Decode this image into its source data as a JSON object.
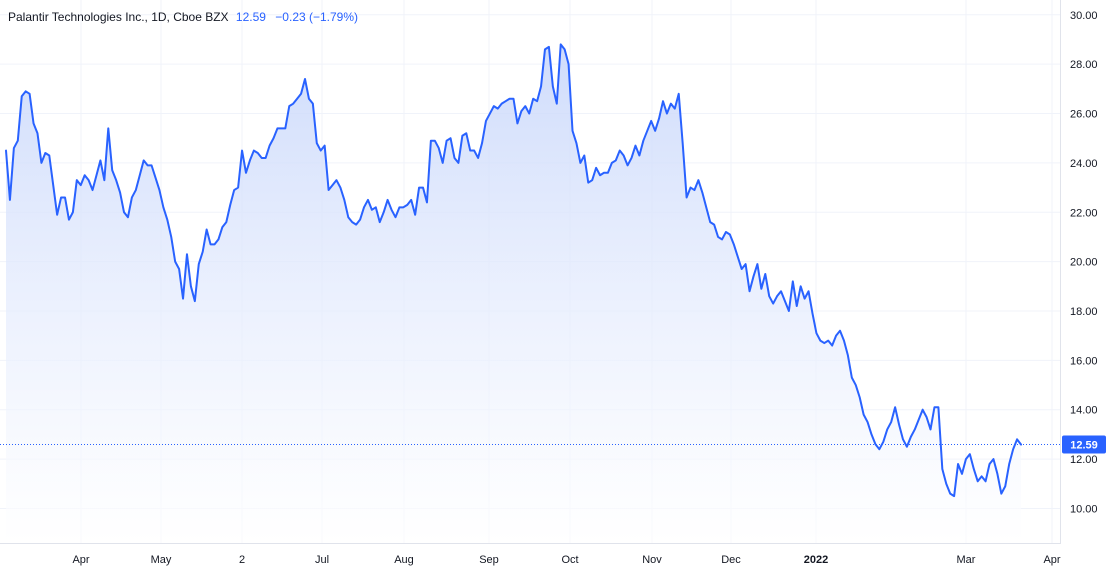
{
  "legend": {
    "symbol": "Palantir Technologies Inc., 1D, Cboe BZX",
    "last": "12.59",
    "change": "−0.23 (−1.79%)"
  },
  "colors": {
    "line": "#2962ff",
    "fill_top": "#c7d6fb",
    "fill_bottom": "#ffffff",
    "grid": "#f0f3fa",
    "axis_text": "#131722",
    "price_label_bg": "#2962ff",
    "price_label_text": "#ffffff"
  },
  "chart_data": {
    "type": "area",
    "title": "Palantir Technologies Inc., 1D, Cboe BZX",
    "xlabel": "",
    "ylabel": "",
    "ylim": [
      8.6,
      30.6
    ],
    "y_ticks": [
      "10.00",
      "12.00",
      "14.00",
      "16.00",
      "18.00",
      "20.00",
      "22.00",
      "24.00",
      "26.00",
      "28.00",
      "30.00"
    ],
    "x_ticks": [
      "Apr",
      "May",
      "2",
      "Jul",
      "Aug",
      "Sep",
      "Oct",
      "Nov",
      "Dec",
      "2022",
      "Mar",
      "Apr"
    ],
    "x_tick_bold": [
      false,
      false,
      false,
      false,
      false,
      false,
      false,
      false,
      false,
      true,
      false,
      false
    ],
    "last_price_label": "12.59",
    "last_price": 12.59,
    "grid": true,
    "series": [
      {
        "values": [
          24.5,
          22.5,
          24.6,
          24.9,
          26.7,
          26.9,
          26.8,
          25.6,
          25.2,
          24.0,
          24.4,
          24.3,
          23.1,
          21.9,
          22.6,
          22.6,
          21.7,
          22.0,
          23.3,
          23.1,
          23.5,
          23.3,
          22.9,
          23.5,
          24.1,
          23.3,
          25.4,
          23.7,
          23.3,
          22.8,
          22.0,
          21.8,
          22.6,
          22.9,
          23.5,
          24.1,
          23.9,
          23.9,
          23.4,
          22.9,
          22.2,
          21.7,
          21.0,
          20.0,
          19.7,
          18.5,
          20.3,
          19.0,
          18.4,
          19.9,
          20.4,
          21.3,
          20.7,
          20.7,
          20.9,
          21.4,
          21.6,
          22.3,
          22.9,
          23.0,
          24.5,
          23.6,
          24.1,
          24.5,
          24.4,
          24.2,
          24.2,
          24.7,
          25.0,
          25.4,
          25.4,
          25.4,
          26.3,
          26.4,
          26.6,
          26.8,
          27.4,
          26.6,
          26.4,
          24.8,
          24.5,
          24.7,
          22.9,
          23.1,
          23.3,
          23.0,
          22.5,
          21.8,
          21.6,
          21.5,
          21.7,
          22.2,
          22.5,
          22.1,
          22.2,
          21.6,
          22.0,
          22.5,
          22.1,
          21.8,
          22.2,
          22.2,
          22.3,
          22.5,
          21.9,
          23.0,
          23.0,
          22.4,
          24.9,
          24.9,
          24.6,
          24.0,
          24.9,
          25.0,
          24.2,
          24.0,
          25.1,
          25.2,
          24.5,
          24.5,
          24.2,
          24.8,
          25.7,
          26.0,
          26.3,
          26.2,
          26.4,
          26.5,
          26.6,
          26.6,
          25.6,
          26.1,
          26.3,
          26.0,
          26.6,
          26.5,
          27.1,
          28.6,
          28.7,
          27.1,
          26.4,
          28.8,
          28.6,
          28.0,
          25.3,
          24.8,
          24.0,
          24.3,
          23.2,
          23.3,
          23.8,
          23.5,
          23.6,
          23.6,
          24.0,
          24.1,
          24.5,
          24.3,
          23.9,
          24.2,
          24.7,
          24.3,
          24.9,
          25.3,
          25.7,
          25.3,
          25.8,
          26.5,
          26.0,
          26.4,
          26.2,
          26.8,
          24.8,
          22.6,
          23.0,
          22.9,
          23.3,
          22.8,
          22.2,
          21.6,
          21.5,
          21.0,
          20.9,
          21.2,
          21.1,
          20.7,
          20.2,
          19.7,
          19.9,
          18.8,
          19.4,
          19.9,
          18.9,
          19.5,
          18.6,
          18.3,
          18.6,
          18.8,
          18.4,
          18.0,
          19.2,
          18.2,
          19.0,
          18.5,
          18.8,
          17.9,
          17.1,
          16.8,
          16.7,
          16.8,
          16.6,
          17.0,
          17.2,
          16.8,
          16.2,
          15.3,
          15.0,
          14.5,
          13.8,
          13.5,
          13.0,
          12.6,
          12.4,
          12.7,
          13.2,
          13.5,
          14.1,
          13.4,
          12.8,
          12.5,
          12.9,
          13.2,
          13.6,
          14.0,
          13.7,
          13.2,
          14.1,
          14.1,
          11.6,
          11.0,
          10.6,
          10.5,
          11.8,
          11.4,
          12.0,
          12.2,
          11.6,
          11.1,
          11.3,
          11.1,
          11.8,
          12.0,
          11.4,
          10.6,
          10.9,
          11.8,
          12.4,
          12.8,
          12.59
        ]
      }
    ]
  }
}
